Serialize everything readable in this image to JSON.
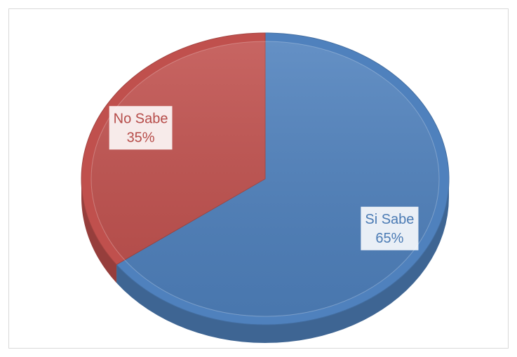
{
  "chart_data": {
    "type": "pie",
    "categories": [
      "Si Sabe",
      "No Sabe"
    ],
    "values": [
      65,
      35
    ],
    "value_labels": [
      "65%",
      "35%"
    ],
    "colors": [
      "#4f81bd",
      "#c0504d"
    ]
  }
}
